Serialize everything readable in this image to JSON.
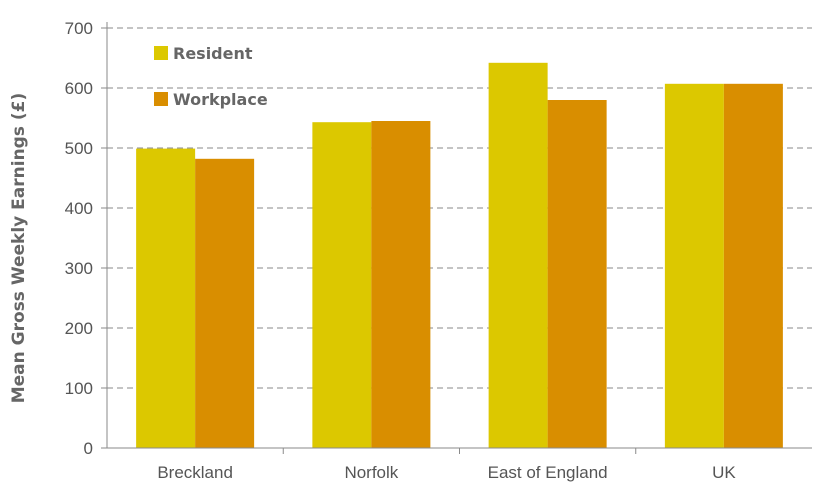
{
  "chart_data": {
    "type": "bar",
    "categories": [
      "Breckland",
      "Norfolk",
      "East of England",
      "UK"
    ],
    "series": [
      {
        "name": "Resident",
        "color": "#dcc800",
        "values": [
          499,
          543,
          642,
          607
        ]
      },
      {
        "name": "Workplace",
        "color": "#d98e00",
        "values": [
          482,
          545,
          580,
          607
        ]
      }
    ],
    "ylabel": "Mean Gross Weekly Earnings (£)",
    "xlabel": "",
    "ylim": [
      0,
      700
    ],
    "yticks": [
      0,
      100,
      200,
      300,
      400,
      500,
      600,
      700
    ],
    "grid": "horizontal-dashed",
    "legend_position": "top-left"
  }
}
